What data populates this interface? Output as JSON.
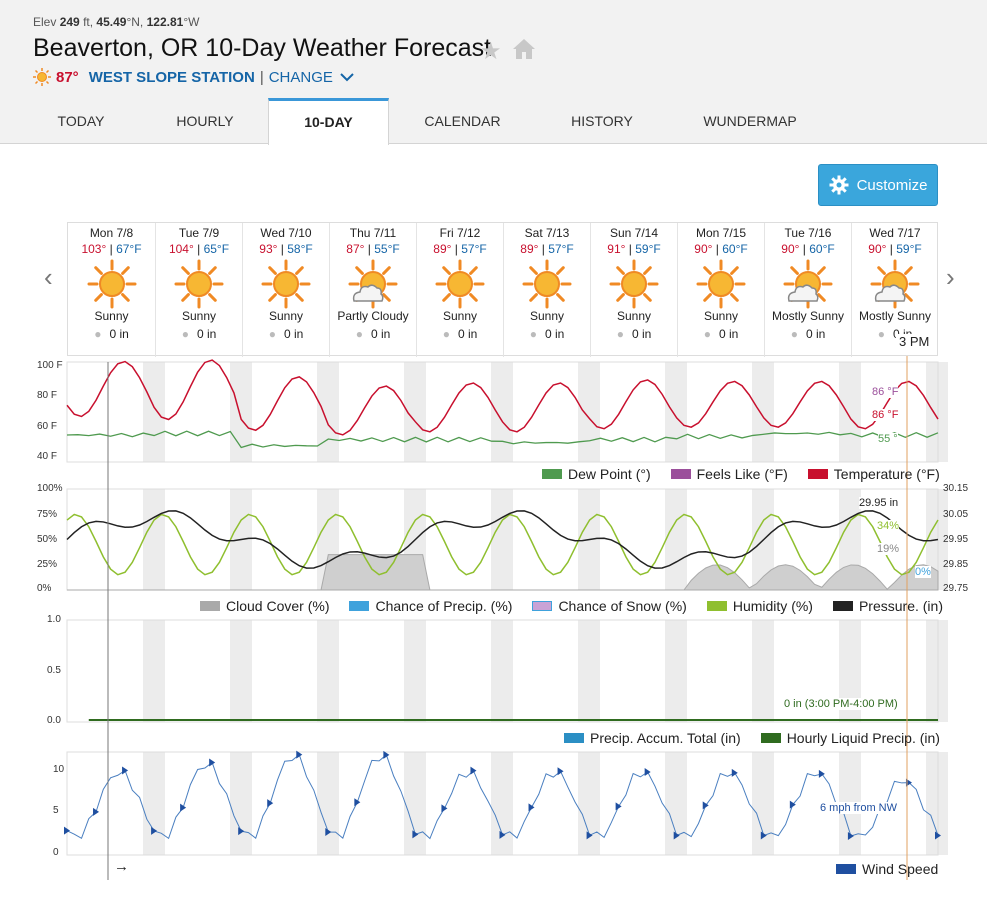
{
  "header": {
    "elev_label": "Elev",
    "elev_value": "249",
    "elev_unit": "ft,",
    "lat": "45.49",
    "lat_unit": "°N,",
    "lon": "122.81",
    "lon_unit": "°W",
    "title": "Beaverton, OR 10-Day Weather Forecast",
    "current_temp": "87°",
    "station_name": "WEST SLOPE STATION",
    "separator": "|",
    "change_label": "CHANGE"
  },
  "tabs": [
    {
      "label": "TODAY"
    },
    {
      "label": "HOURLY"
    },
    {
      "label": "10-DAY"
    },
    {
      "label": "CALENDAR"
    },
    {
      "label": "HISTORY"
    },
    {
      "label": "WUNDERMAP"
    }
  ],
  "customize_label": "Customize",
  "days": [
    {
      "name": "Mon 7/8",
      "hi": "103°",
      "lo": "67°F",
      "cond": "Sunny",
      "precip": "0 in",
      "icon": "sun-icon"
    },
    {
      "name": "Tue 7/9",
      "hi": "104°",
      "lo": "65°F",
      "cond": "Sunny",
      "precip": "0 in",
      "icon": "sun-icon"
    },
    {
      "name": "Wed 7/10",
      "hi": "93°",
      "lo": "58°F",
      "cond": "Sunny",
      "precip": "0 in",
      "icon": "sun-icon"
    },
    {
      "name": "Thu 7/11",
      "hi": "87°",
      "lo": "55°F",
      "cond": "Partly Cloudy",
      "precip": "0 in",
      "icon": "partly-cloudy-icon"
    },
    {
      "name": "Fri 7/12",
      "hi": "89°",
      "lo": "57°F",
      "cond": "Sunny",
      "precip": "0 in",
      "icon": "sun-icon"
    },
    {
      "name": "Sat 7/13",
      "hi": "89°",
      "lo": "57°F",
      "cond": "Sunny",
      "precip": "0 in",
      "icon": "sun-icon"
    },
    {
      "name": "Sun 7/14",
      "hi": "91°",
      "lo": "59°F",
      "cond": "Sunny",
      "precip": "0 in",
      "icon": "sun-icon"
    },
    {
      "name": "Mon 7/15",
      "hi": "90°",
      "lo": "60°F",
      "cond": "Sunny",
      "precip": "0 in",
      "icon": "sun-icon"
    },
    {
      "name": "Tue 7/16",
      "hi": "90°",
      "lo": "60°F",
      "cond": "Mostly Sunny",
      "precip": "0 in",
      "icon": "mostly-sunny-icon"
    },
    {
      "name": "Wed 7/17",
      "hi": "90°",
      "lo": "59°F",
      "cond": "Mostly Sunny",
      "precip": "0 in",
      "icon": "mostly-sunny-icon"
    }
  ],
  "hover_time": "3 PM",
  "hi_sep": " | ",
  "chart_data": [
    {
      "type": "line",
      "yticks": [
        "100 F",
        "80 F",
        "60 F",
        "40 F"
      ],
      "ylim": [
        40,
        100
      ],
      "series": [
        {
          "name": "Temperature (°F)",
          "color": "#c8102e",
          "daily_highs": [
            103,
            104,
            93,
            87,
            89,
            89,
            91,
            90,
            90,
            90
          ],
          "daily_lows": [
            67,
            65,
            58,
            55,
            57,
            57,
            59,
            60,
            60,
            59
          ]
        },
        {
          "name": "Dew Point (°)",
          "color": "#4f9a4f",
          "values_daily": [
            55,
            56,
            48,
            52,
            52,
            50,
            52,
            54,
            56,
            55
          ]
        },
        {
          "name": "Feels Like (°F)",
          "color": "#9b4f9b"
        }
      ],
      "annotations": [
        "86 °F",
        "86 °F",
        "55 °"
      ]
    },
    {
      "type": "line",
      "yticks": [
        "100%",
        "75%",
        "50%",
        "25%",
        "0%"
      ],
      "yticks_right": [
        "30.15",
        "30.05",
        "29.95",
        "29.85",
        "29.75"
      ],
      "series": [
        {
          "name": "Cloud Cover (%)",
          "color": "#a9a9a9"
        },
        {
          "name": "Chance of Precip. (%)",
          "color": "#3fa2dc"
        },
        {
          "name": "Chance of Snow (%)",
          "color": "#c9a3d6"
        },
        {
          "name": "Humidity (%)",
          "color": "#8fbf2f"
        },
        {
          "name": "Pressure. (in)",
          "color": "#222222"
        }
      ],
      "annotations": [
        "29.95 in",
        "34%",
        "19%",
        "0%"
      ]
    },
    {
      "type": "line",
      "yticks": [
        "1.0",
        "0.5",
        "0.0"
      ],
      "ylim": [
        0,
        1
      ],
      "series": [
        {
          "name": "Precip. Accum. Total (in)",
          "color": "#2b8fc4"
        },
        {
          "name": "Hourly Liquid Precip. (in)",
          "color": "#2f6b1f"
        }
      ],
      "annotations": [
        "0 in (3:00 PM-4:00 PM)"
      ]
    },
    {
      "type": "line",
      "yticks": [
        "10",
        "5",
        "0"
      ],
      "ylim": [
        0,
        12
      ],
      "series": [
        {
          "name": "Wind Speed",
          "color": "#1f4fa0",
          "daily_peaks": [
            10,
            11,
            12,
            12,
            10,
            10,
            10,
            10,
            10,
            9
          ]
        }
      ],
      "annotations": [
        "6 mph from NW"
      ],
      "footer_arrow": "→"
    }
  ]
}
